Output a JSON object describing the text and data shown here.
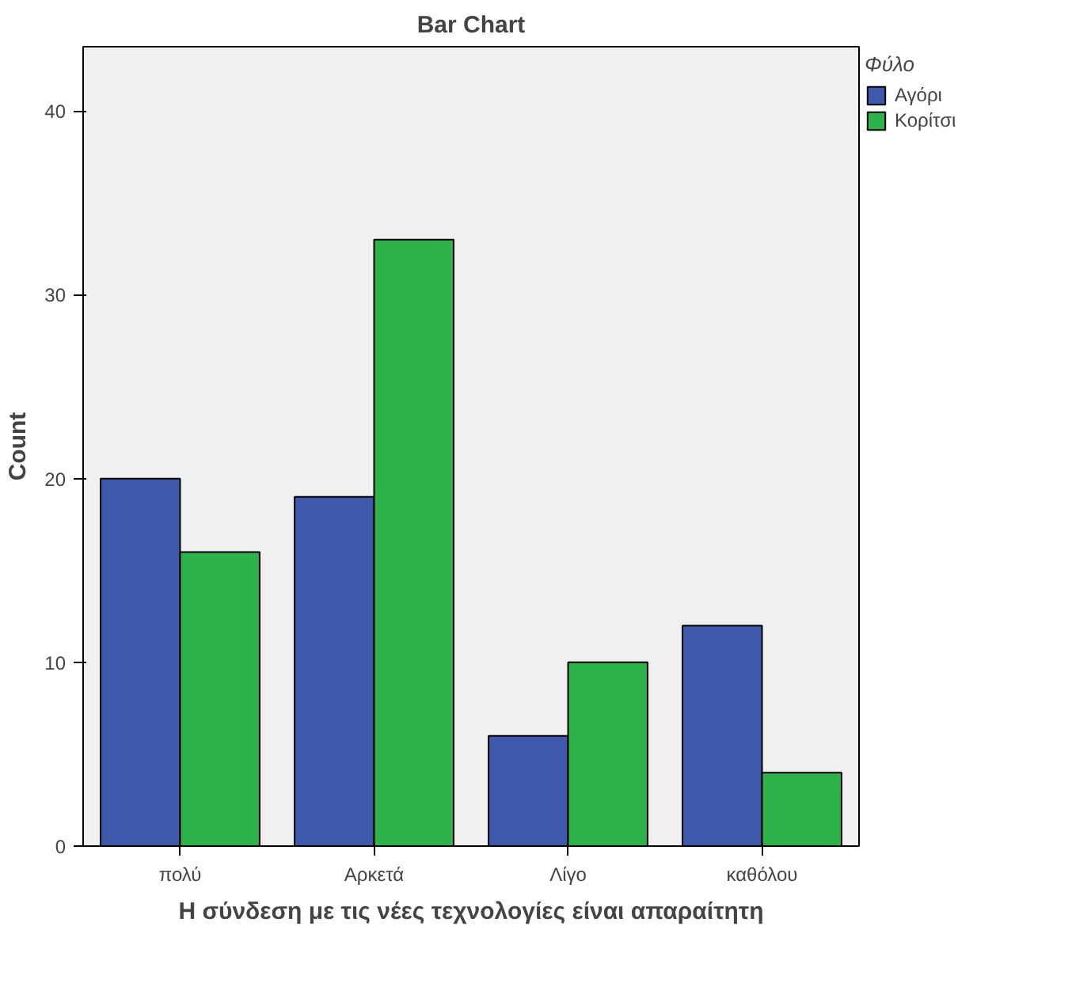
{
  "chart_data": {
    "type": "bar",
    "title": "Bar Chart",
    "xlabel": "Η σύνδεση με τις νέες τεχνολογίες είναι απαραίτητη",
    "ylabel": "Count",
    "legend_title": "Φύλο",
    "categories": [
      "πολύ",
      "Αρκετά",
      "Λίγο",
      "καθόλου"
    ],
    "series": [
      {
        "name": "Αγόρι",
        "color": "#3e58ac",
        "values": [
          20,
          19,
          6,
          12
        ]
      },
      {
        "name": "Κορίτσι",
        "color": "#2db34a",
        "values": [
          16,
          33,
          10,
          4
        ]
      }
    ],
    "ylim": [
      0,
      43.5
    ],
    "yticks": [
      0,
      10,
      20,
      30,
      40
    ],
    "grid": false,
    "legend": "right"
  }
}
